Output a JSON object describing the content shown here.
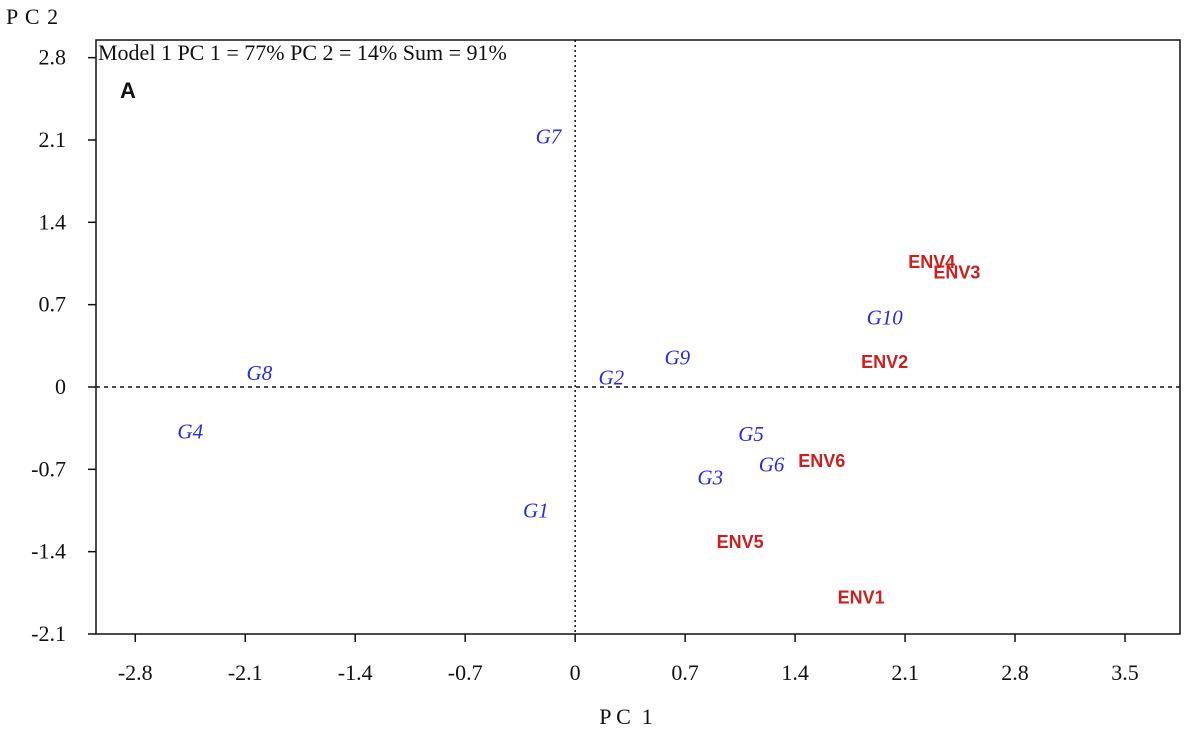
{
  "chart_data": {
    "type": "scatter",
    "title": "Model 1 PC 1 = 77% PC 2 = 14% Sum = 91%",
    "panel_label": "A",
    "xlabel": "P C  1",
    "ylabel": "P C 2",
    "xlim": [
      -3.05,
      3.85
    ],
    "ylim": [
      -2.1,
      2.95
    ],
    "xticks": [
      "-2.8",
      "-2.1",
      "-1.4",
      "-0.7",
      "0",
      "0.7",
      "1.4",
      "2.1",
      "2.8",
      "3.5"
    ],
    "yticks": [
      "2.8",
      "2.1",
      "1.4",
      "0.7",
      "0",
      "-0.7",
      "-1.4",
      "-2.1"
    ],
    "reference_lines": {
      "x": 0,
      "y": 0,
      "style": "dotted"
    },
    "grid": false,
    "legend": "none",
    "series": [
      {
        "label_color": "#2a2ae0",
        "label_style": "italic-serif",
        "points": [
          {
            "label": "G1",
            "x": -0.25,
            "y": -1.05
          },
          {
            "label": "G2",
            "x": 0.23,
            "y": 0.08
          },
          {
            "label": "G3",
            "x": 0.86,
            "y": -0.77
          },
          {
            "label": "G4",
            "x": -2.45,
            "y": -0.38
          },
          {
            "label": "G5",
            "x": 1.12,
            "y": -0.4
          },
          {
            "label": "G6",
            "x": 1.25,
            "y": -0.66
          },
          {
            "label": "G7",
            "x": -0.17,
            "y": 2.13
          },
          {
            "label": "G8",
            "x": -2.01,
            "y": 0.12
          },
          {
            "label": "G9",
            "x": 0.65,
            "y": 0.25
          },
          {
            "label": "G10",
            "x": 1.97,
            "y": 0.59
          }
        ]
      },
      {
        "label_color": "#cc1f1f",
        "label_style": "bold-sans",
        "points": [
          {
            "label": "ENV1",
            "x": 1.82,
            "y": -1.78
          },
          {
            "label": "ENV2",
            "x": 1.97,
            "y": 0.22
          },
          {
            "label": "ENV3",
            "x": 2.43,
            "y": 0.98
          },
          {
            "label": "ENV4",
            "x": 2.27,
            "y": 1.07
          },
          {
            "label": "ENV5",
            "x": 1.05,
            "y": -1.31
          },
          {
            "label": "ENV6",
            "x": 1.57,
            "y": -0.62
          }
        ]
      }
    ]
  }
}
